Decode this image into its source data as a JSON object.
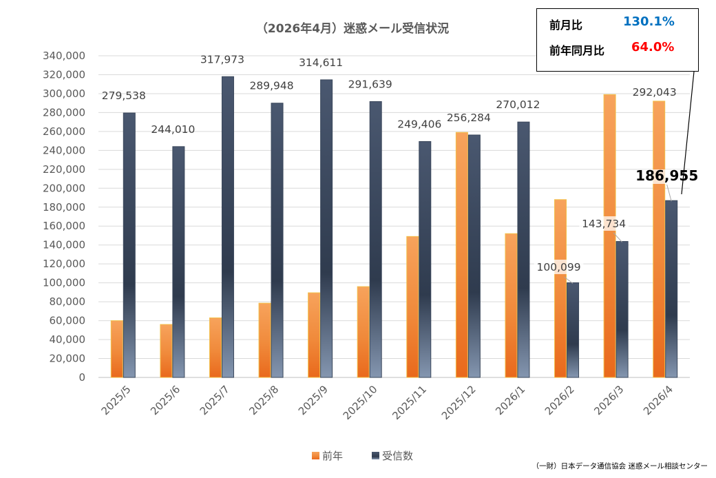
{
  "chart_data": {
    "type": "bar",
    "title": "（2026年4月）迷惑メール受信状況",
    "categories": [
      "2025/5",
      "2025/6",
      "2025/7",
      "2025/8",
      "2025/9",
      "2025/10",
      "2025/11",
      "2025/12",
      "2026/1",
      "2026/2",
      "2026/3",
      "2026/4"
    ],
    "series": [
      {
        "name": "前年",
        "values": [
          60000,
          56000,
          63000,
          78500,
          89500,
          96000,
          149000,
          259000,
          152000,
          188000,
          299000,
          292043
        ],
        "color": "#ED7D31"
      },
      {
        "name": "受信数",
        "values": [
          279538,
          244010,
          317973,
          289948,
          314611,
          291639,
          249406,
          256284,
          270012,
          100099,
          143734,
          186955
        ],
        "color": "#44546A"
      }
    ],
    "data_labels": [
      {
        "text": "279,538"
      },
      {
        "text": "244,010"
      },
      {
        "text": "317,973"
      },
      {
        "text": "289,948"
      },
      {
        "text": "314,611"
      },
      {
        "text": "291,639"
      },
      {
        "text": "249,406"
      },
      {
        "text": "256,284"
      },
      {
        "text": "270,012"
      },
      {
        "text": "100,099"
      },
      {
        "text": "143,734"
      },
      {
        "text": "292,043"
      },
      {
        "text": "186,955"
      }
    ],
    "ylim": [
      0,
      340000
    ],
    "yticks": [
      "0",
      "20,000",
      "40,000",
      "60,000",
      "80,000",
      "100,000",
      "120,000",
      "140,000",
      "160,000",
      "180,000",
      "200,000",
      "220,000",
      "240,000",
      "260,000",
      "280,000",
      "300,000",
      "320,000",
      "340,000"
    ],
    "grid": true,
    "legend_position": "bottom"
  },
  "stats": {
    "mom_label": "前月比",
    "mom_value": "130.1%",
    "mom_color": "#0070C0",
    "yoy_label": "前年同月比",
    "yoy_value": "64.0%",
    "yoy_color": "#FF0000"
  },
  "source": "（一財）日本データ通信協会 迷惑メール相談センター"
}
